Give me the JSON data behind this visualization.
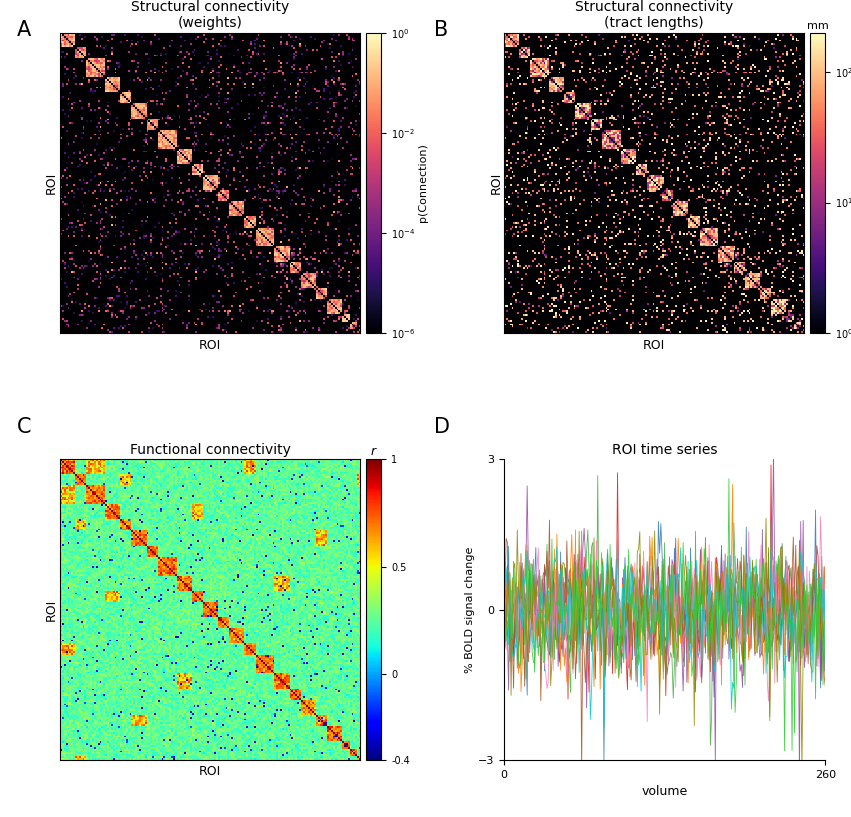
{
  "panel_A_title": "Structural connectivity\n(weights)",
  "panel_B_title": "Structural connectivity\n(tract lengths)",
  "panel_C_title": "Functional connectivity",
  "panel_D_title": "ROI time series",
  "panel_A_cbar_label": "p(Connection)",
  "panel_B_cbar_label": "mm",
  "panel_C_cbar_label": "r",
  "panel_A_vmin": -6,
  "panel_A_vmax": 0,
  "panel_B_vmin": 0,
  "panel_B_vmax": 2.3,
  "panel_C_vmin": -0.4,
  "panel_C_vmax": 1.0,
  "n_rois": 160,
  "n_timepoints": 261,
  "n_ts_rois": 10,
  "xlabel_roi": "ROI",
  "ylabel_roi": "ROI",
  "xlabel_volume": "volume",
  "ylabel_bold": "% BOLD signal change",
  "ts_ylim": [
    -3,
    3
  ],
  "ts_xlim": [
    0,
    260
  ],
  "ts_xticks": [
    0,
    260
  ],
  "ts_yticks": [
    -3,
    0,
    3
  ],
  "panel_labels": [
    "A",
    "B",
    "C",
    "D"
  ],
  "background_color": "#ffffff",
  "seed": 42
}
